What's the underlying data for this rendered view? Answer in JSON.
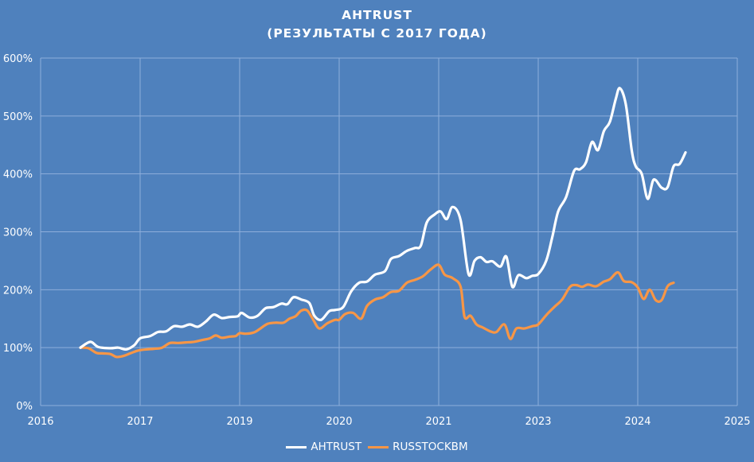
{
  "header": {
    "title_line1": "AHTRUST",
    "title_line2": "(РЕЗУЛЬТАТЫ С 2017 ГОДА)"
  },
  "colors": {
    "background": "#4f81bd",
    "gridline": "#8eaedb",
    "ahtrust": "#ffffff",
    "russtockbm": "#f79646"
  },
  "legend": {
    "items": [
      {
        "label": "AHTRUST",
        "color": "#ffffff"
      },
      {
        "label": "RUSSTOCKBM",
        "color": "#f79646"
      }
    ]
  },
  "chart_data": {
    "type": "line",
    "title": "AHTRUST (РЕЗУЛЬТАТЫ С 2017 ГОДА)",
    "xlabel": "",
    "ylabel": "",
    "categories": [
      "2016",
      "2017",
      "2019",
      "2020",
      "2021",
      "2023",
      "2024",
      "2025"
    ],
    "y_ticks": [
      "0%",
      "100%",
      "200%",
      "300%",
      "400%",
      "500%",
      "600%"
    ],
    "ylim": [
      0,
      600
    ],
    "grid": true,
    "legend_position": "bottom",
    "x_unit_note": "x values are positions along the category axis (0 = 2016 ... 7 = 2025)",
    "series": [
      {
        "name": "AHTRUST",
        "color": "#ffffff",
        "points": [
          [
            0.4,
            100
          ],
          [
            0.5,
            110
          ],
          [
            0.58,
            101
          ],
          [
            0.7,
            99
          ],
          [
            0.78,
            100
          ],
          [
            0.86,
            97
          ],
          [
            0.94,
            104
          ],
          [
            1.0,
            116
          ],
          [
            1.1,
            120
          ],
          [
            1.18,
            127
          ],
          [
            1.26,
            128
          ],
          [
            1.34,
            137
          ],
          [
            1.42,
            136
          ],
          [
            1.5,
            140
          ],
          [
            1.58,
            136
          ],
          [
            1.66,
            145
          ],
          [
            1.74,
            157
          ],
          [
            1.82,
            151
          ],
          [
            1.9,
            153
          ],
          [
            1.98,
            154
          ],
          [
            2.02,
            160
          ],
          [
            2.1,
            152
          ],
          [
            2.18,
            155
          ],
          [
            2.26,
            168
          ],
          [
            2.34,
            170
          ],
          [
            2.42,
            176
          ],
          [
            2.48,
            175
          ],
          [
            2.54,
            187
          ],
          [
            2.62,
            183
          ],
          [
            2.7,
            177
          ],
          [
            2.75,
            155
          ],
          [
            2.82,
            148
          ],
          [
            2.9,
            163
          ],
          [
            2.96,
            165
          ],
          [
            3.04,
            170
          ],
          [
            3.12,
            197
          ],
          [
            3.2,
            212
          ],
          [
            3.28,
            214
          ],
          [
            3.36,
            226
          ],
          [
            3.46,
            232
          ],
          [
            3.52,
            253
          ],
          [
            3.6,
            258
          ],
          [
            3.68,
            267
          ],
          [
            3.76,
            272
          ],
          [
            3.82,
            276
          ],
          [
            3.88,
            316
          ],
          [
            3.96,
            330
          ],
          [
            4.02,
            335
          ],
          [
            4.08,
            322
          ],
          [
            4.14,
            343
          ],
          [
            4.22,
            320
          ],
          [
            4.3,
            227
          ],
          [
            4.36,
            250
          ],
          [
            4.42,
            256
          ],
          [
            4.48,
            248
          ],
          [
            4.54,
            249
          ],
          [
            4.62,
            240
          ],
          [
            4.68,
            257
          ],
          [
            4.74,
            205
          ],
          [
            4.8,
            225
          ],
          [
            4.88,
            220
          ],
          [
            4.94,
            224
          ],
          [
            5.0,
            227
          ],
          [
            5.08,
            250
          ],
          [
            5.14,
            290
          ],
          [
            5.2,
            335
          ],
          [
            5.28,
            360
          ],
          [
            5.36,
            405
          ],
          [
            5.42,
            408
          ],
          [
            5.48,
            420
          ],
          [
            5.54,
            455
          ],
          [
            5.6,
            441
          ],
          [
            5.66,
            474
          ],
          [
            5.72,
            490
          ],
          [
            5.78,
            530
          ],
          [
            5.82,
            548
          ],
          [
            5.88,
            520
          ],
          [
            5.94,
            440
          ],
          [
            5.98,
            413
          ],
          [
            6.04,
            400
          ],
          [
            6.1,
            357
          ],
          [
            6.16,
            390
          ],
          [
            6.24,
            376
          ],
          [
            6.3,
            377
          ],
          [
            6.36,
            413
          ],
          [
            6.42,
            417
          ],
          [
            6.48,
            437
          ]
        ]
      },
      {
        "name": "RUSSTOCKBM",
        "color": "#f79646",
        "points": [
          [
            0.4,
            100
          ],
          [
            0.48,
            99
          ],
          [
            0.56,
            91
          ],
          [
            0.62,
            90
          ],
          [
            0.7,
            89
          ],
          [
            0.76,
            84
          ],
          [
            0.82,
            85
          ],
          [
            0.9,
            90
          ],
          [
            0.98,
            95
          ],
          [
            1.06,
            97
          ],
          [
            1.14,
            98
          ],
          [
            1.22,
            100
          ],
          [
            1.3,
            108
          ],
          [
            1.38,
            108
          ],
          [
            1.46,
            109
          ],
          [
            1.54,
            110
          ],
          [
            1.62,
            113
          ],
          [
            1.7,
            116
          ],
          [
            1.76,
            121
          ],
          [
            1.82,
            117
          ],
          [
            1.9,
            119
          ],
          [
            1.96,
            120
          ],
          [
            2.0,
            125
          ],
          [
            2.06,
            124
          ],
          [
            2.14,
            126
          ],
          [
            2.2,
            132
          ],
          [
            2.28,
            141
          ],
          [
            2.36,
            143
          ],
          [
            2.44,
            143
          ],
          [
            2.5,
            150
          ],
          [
            2.56,
            154
          ],
          [
            2.62,
            164
          ],
          [
            2.68,
            164
          ],
          [
            2.74,
            148
          ],
          [
            2.8,
            133
          ],
          [
            2.88,
            142
          ],
          [
            2.96,
            148
          ],
          [
            3.0,
            148
          ],
          [
            3.06,
            158
          ],
          [
            3.14,
            160
          ],
          [
            3.22,
            150
          ],
          [
            3.28,
            172
          ],
          [
            3.36,
            183
          ],
          [
            3.44,
            187
          ],
          [
            3.52,
            196
          ],
          [
            3.6,
            198
          ],
          [
            3.68,
            212
          ],
          [
            3.76,
            217
          ],
          [
            3.84,
            223
          ],
          [
            3.92,
            235
          ],
          [
            4.0,
            243
          ],
          [
            4.06,
            226
          ],
          [
            4.14,
            220
          ],
          [
            4.22,
            205
          ],
          [
            4.26,
            153
          ],
          [
            4.32,
            155
          ],
          [
            4.38,
            140
          ],
          [
            4.44,
            135
          ],
          [
            4.52,
            128
          ],
          [
            4.58,
            127
          ],
          [
            4.66,
            140
          ],
          [
            4.72,
            115
          ],
          [
            4.78,
            133
          ],
          [
            4.86,
            133
          ],
          [
            4.94,
            137
          ],
          [
            5.0,
            140
          ],
          [
            5.08,
            156
          ],
          [
            5.16,
            170
          ],
          [
            5.24,
            183
          ],
          [
            5.32,
            205
          ],
          [
            5.38,
            208
          ],
          [
            5.44,
            205
          ],
          [
            5.5,
            209
          ],
          [
            5.58,
            206
          ],
          [
            5.66,
            214
          ],
          [
            5.72,
            218
          ],
          [
            5.8,
            230
          ],
          [
            5.86,
            215
          ],
          [
            5.94,
            213
          ],
          [
            6.0,
            204
          ],
          [
            6.06,
            184
          ],
          [
            6.12,
            200
          ],
          [
            6.18,
            182
          ],
          [
            6.24,
            182
          ],
          [
            6.3,
            206
          ],
          [
            6.36,
            212
          ]
        ]
      }
    ]
  }
}
